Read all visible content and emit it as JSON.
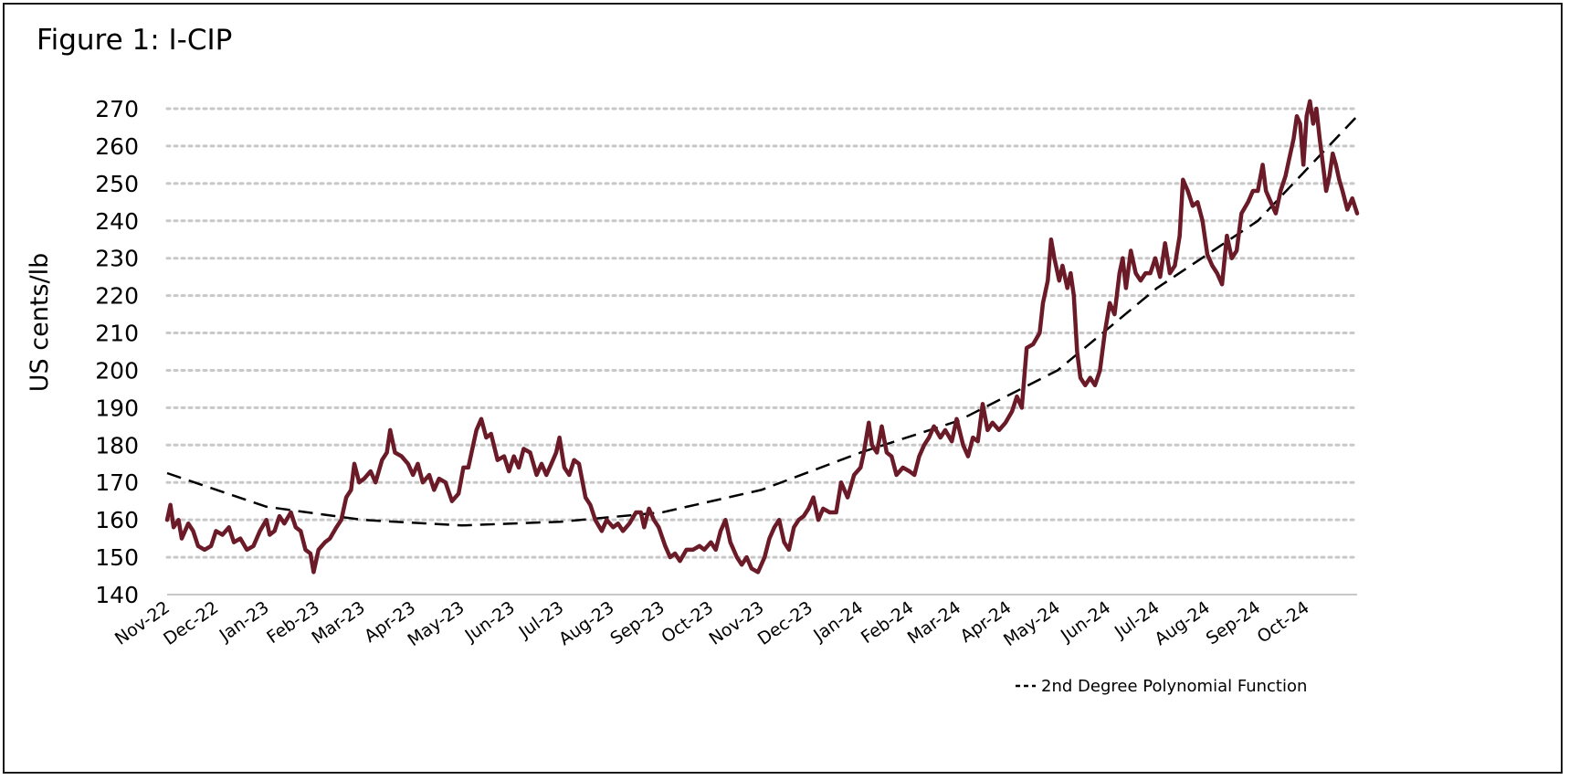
{
  "chart_data": {
    "type": "line",
    "title": "Figure 1: I-CIP",
    "xlabel": "",
    "ylabel": "US cents/lb",
    "ylim": [
      140,
      270
    ],
    "yticks": [
      140,
      150,
      160,
      170,
      180,
      190,
      200,
      210,
      220,
      230,
      240,
      250,
      260,
      270
    ],
    "grid": "horizontal dotted",
    "legend_position": "bottom-right",
    "colors": {
      "series": "#6b1a28",
      "trend": "#000000",
      "grid": "#c8c8c8"
    },
    "x_tick_labels": [
      "Nov-22",
      "Dec-22",
      "Jan-23",
      "Feb-23",
      "Mar-23",
      "Apr-23",
      "May-23",
      "Jun-23",
      "Jul-23",
      "Aug-23",
      "Sep-23",
      "Oct-23",
      "Nov-23",
      "Dec-23",
      "Jan-24",
      "Feb-24",
      "Mar-24",
      "Apr-24",
      "May-24",
      "Jun-24",
      "Jul-24",
      "Aug-24",
      "Sep-24",
      "Oct-24"
    ],
    "series": [
      {
        "style": "solid",
        "points": [
          [
            "2022-11-01",
            160
          ],
          [
            "2022-11-03",
            164
          ],
          [
            "2022-11-05",
            158
          ],
          [
            "2022-11-08",
            160
          ],
          [
            "2022-11-10",
            155
          ],
          [
            "2022-11-14",
            159
          ],
          [
            "2022-11-17",
            157
          ],
          [
            "2022-11-20",
            153
          ],
          [
            "2022-11-24",
            152
          ],
          [
            "2022-11-28",
            153
          ],
          [
            "2022-12-01",
            157
          ],
          [
            "2022-12-05",
            156
          ],
          [
            "2022-12-09",
            158
          ],
          [
            "2022-12-12",
            154
          ],
          [
            "2022-12-16",
            155
          ],
          [
            "2022-12-20",
            152
          ],
          [
            "2022-12-24",
            153
          ],
          [
            "2022-12-28",
            157
          ],
          [
            "2023-01-01",
            160
          ],
          [
            "2023-01-03",
            156
          ],
          [
            "2023-01-06",
            157
          ],
          [
            "2023-01-09",
            161
          ],
          [
            "2023-01-12",
            159
          ],
          [
            "2023-01-16",
            162
          ],
          [
            "2023-01-19",
            158
          ],
          [
            "2023-01-22",
            157
          ],
          [
            "2023-01-25",
            152
          ],
          [
            "2023-01-28",
            151
          ],
          [
            "2023-01-30",
            146
          ],
          [
            "2023-02-02",
            152
          ],
          [
            "2023-02-06",
            154
          ],
          [
            "2023-02-09",
            155
          ],
          [
            "2023-02-13",
            158
          ],
          [
            "2023-02-16",
            160
          ],
          [
            "2023-02-19",
            166
          ],
          [
            "2023-02-22",
            168
          ],
          [
            "2023-02-24",
            175
          ],
          [
            "2023-02-27",
            170
          ],
          [
            "2023-03-02",
            171
          ],
          [
            "2023-03-06",
            173
          ],
          [
            "2023-03-09",
            170
          ],
          [
            "2023-03-13",
            176
          ],
          [
            "2023-03-16",
            178
          ],
          [
            "2023-03-18",
            184
          ],
          [
            "2023-03-21",
            178
          ],
          [
            "2023-03-25",
            177
          ],
          [
            "2023-03-29",
            175
          ],
          [
            "2023-04-01",
            172
          ],
          [
            "2023-04-04",
            175
          ],
          [
            "2023-04-07",
            170
          ],
          [
            "2023-04-11",
            172
          ],
          [
            "2023-04-14",
            168
          ],
          [
            "2023-04-17",
            171
          ],
          [
            "2023-04-21",
            170
          ],
          [
            "2023-04-25",
            165
          ],
          [
            "2023-04-29",
            167
          ],
          [
            "2023-05-02",
            174
          ],
          [
            "2023-05-05",
            174
          ],
          [
            "2023-05-08",
            180
          ],
          [
            "2023-05-10",
            184
          ],
          [
            "2023-05-13",
            187
          ],
          [
            "2023-05-16",
            182
          ],
          [
            "2023-05-19",
            183
          ],
          [
            "2023-05-23",
            176
          ],
          [
            "2023-05-27",
            177
          ],
          [
            "2023-05-30",
            173
          ],
          [
            "2023-06-02",
            177
          ],
          [
            "2023-06-05",
            174
          ],
          [
            "2023-06-08",
            179
          ],
          [
            "2023-06-12",
            178
          ],
          [
            "2023-06-16",
            172
          ],
          [
            "2023-06-19",
            175
          ],
          [
            "2023-06-22",
            172
          ],
          [
            "2023-06-25",
            175
          ],
          [
            "2023-06-28",
            178
          ],
          [
            "2023-06-30",
            182
          ],
          [
            "2023-07-03",
            174
          ],
          [
            "2023-07-06",
            172
          ],
          [
            "2023-07-09",
            176
          ],
          [
            "2023-07-12",
            175
          ],
          [
            "2023-07-16",
            166
          ],
          [
            "2023-07-19",
            164
          ],
          [
            "2023-07-22",
            160
          ],
          [
            "2023-07-26",
            157
          ],
          [
            "2023-07-29",
            160
          ],
          [
            "2023-08-02",
            158
          ],
          [
            "2023-08-05",
            159
          ],
          [
            "2023-08-08",
            157
          ],
          [
            "2023-08-12",
            159
          ],
          [
            "2023-08-16",
            162
          ],
          [
            "2023-08-19",
            162
          ],
          [
            "2023-08-21",
            158
          ],
          [
            "2023-08-24",
            163
          ],
          [
            "2023-08-27",
            160
          ],
          [
            "2023-08-30",
            158
          ],
          [
            "2023-09-03",
            153
          ],
          [
            "2023-09-06",
            150
          ],
          [
            "2023-09-09",
            151
          ],
          [
            "2023-09-12",
            149
          ],
          [
            "2023-09-16",
            152
          ],
          [
            "2023-09-20",
            152
          ],
          [
            "2023-09-24",
            153
          ],
          [
            "2023-09-27",
            152
          ],
          [
            "2023-10-01",
            154
          ],
          [
            "2023-10-04",
            152
          ],
          [
            "2023-10-07",
            157
          ],
          [
            "2023-10-10",
            160
          ],
          [
            "2023-10-13",
            154
          ],
          [
            "2023-10-17",
            150
          ],
          [
            "2023-10-20",
            148
          ],
          [
            "2023-10-23",
            150
          ],
          [
            "2023-10-26",
            147
          ],
          [
            "2023-10-30",
            146
          ],
          [
            "2023-11-03",
            150
          ],
          [
            "2023-11-06",
            155
          ],
          [
            "2023-11-09",
            158
          ],
          [
            "2023-11-12",
            160
          ],
          [
            "2023-11-15",
            154
          ],
          [
            "2023-11-18",
            152
          ],
          [
            "2023-11-21",
            158
          ],
          [
            "2023-11-24",
            160
          ],
          [
            "2023-11-27",
            161
          ],
          [
            "2023-11-30",
            163
          ],
          [
            "2023-12-03",
            166
          ],
          [
            "2023-12-06",
            160
          ],
          [
            "2023-12-09",
            163
          ],
          [
            "2023-12-13",
            162
          ],
          [
            "2023-12-17",
            162
          ],
          [
            "2023-12-20",
            170
          ],
          [
            "2023-12-24",
            166
          ],
          [
            "2023-12-28",
            172
          ],
          [
            "2024-01-01",
            174
          ],
          [
            "2024-01-03",
            178
          ],
          [
            "2024-01-06",
            186
          ],
          [
            "2024-01-08",
            180
          ],
          [
            "2024-01-11",
            178
          ],
          [
            "2024-01-14",
            185
          ],
          [
            "2024-01-17",
            178
          ],
          [
            "2024-01-20",
            177
          ],
          [
            "2024-01-23",
            172
          ],
          [
            "2024-01-27",
            174
          ],
          [
            "2024-01-31",
            173
          ],
          [
            "2024-02-03",
            172
          ],
          [
            "2024-02-06",
            177
          ],
          [
            "2024-02-09",
            180
          ],
          [
            "2024-02-12",
            182
          ],
          [
            "2024-02-15",
            185
          ],
          [
            "2024-02-19",
            182
          ],
          [
            "2024-02-22",
            184
          ],
          [
            "2024-02-26",
            181
          ],
          [
            "2024-02-29",
            187
          ],
          [
            "2024-03-04",
            180
          ],
          [
            "2024-03-07",
            177
          ],
          [
            "2024-03-10",
            182
          ],
          [
            "2024-03-13",
            181
          ],
          [
            "2024-03-16",
            191
          ],
          [
            "2024-03-19",
            184
          ],
          [
            "2024-03-22",
            186
          ],
          [
            "2024-03-26",
            184
          ],
          [
            "2024-03-30",
            186
          ],
          [
            "2024-04-03",
            189
          ],
          [
            "2024-04-06",
            193
          ],
          [
            "2024-04-09",
            190
          ],
          [
            "2024-04-12",
            206
          ],
          [
            "2024-04-16",
            207
          ],
          [
            "2024-04-20",
            210
          ],
          [
            "2024-04-22",
            218
          ],
          [
            "2024-04-25",
            224
          ],
          [
            "2024-04-27",
            235
          ],
          [
            "2024-04-29",
            230
          ],
          [
            "2024-05-02",
            224
          ],
          [
            "2024-05-04",
            228
          ],
          [
            "2024-05-07",
            222
          ],
          [
            "2024-05-09",
            226
          ],
          [
            "2024-05-11",
            220
          ],
          [
            "2024-05-13",
            205
          ],
          [
            "2024-05-15",
            198
          ],
          [
            "2024-05-18",
            196
          ],
          [
            "2024-05-21",
            198
          ],
          [
            "2024-05-24",
            196
          ],
          [
            "2024-05-27",
            200
          ],
          [
            "2024-05-30",
            210
          ],
          [
            "2024-06-02",
            218
          ],
          [
            "2024-06-05",
            215
          ],
          [
            "2024-06-08",
            226
          ],
          [
            "2024-06-10",
            230
          ],
          [
            "2024-06-12",
            222
          ],
          [
            "2024-06-15",
            232
          ],
          [
            "2024-06-18",
            226
          ],
          [
            "2024-06-21",
            224
          ],
          [
            "2024-06-24",
            226
          ],
          [
            "2024-06-27",
            226
          ],
          [
            "2024-06-30",
            230
          ],
          [
            "2024-07-03",
            225
          ],
          [
            "2024-07-06",
            234
          ],
          [
            "2024-07-09",
            226
          ],
          [
            "2024-07-12",
            228
          ],
          [
            "2024-07-15",
            236
          ],
          [
            "2024-07-17",
            251
          ],
          [
            "2024-07-20",
            248
          ],
          [
            "2024-07-23",
            244
          ],
          [
            "2024-07-26",
            245
          ],
          [
            "2024-07-29",
            240
          ],
          [
            "2024-08-01",
            231
          ],
          [
            "2024-08-04",
            228
          ],
          [
            "2024-08-07",
            226
          ],
          [
            "2024-08-10",
            223
          ],
          [
            "2024-08-13",
            236
          ],
          [
            "2024-08-16",
            230
          ],
          [
            "2024-08-19",
            232
          ],
          [
            "2024-08-22",
            242
          ],
          [
            "2024-08-26",
            245
          ],
          [
            "2024-08-29",
            248
          ],
          [
            "2024-09-01",
            248
          ],
          [
            "2024-09-04",
            255
          ],
          [
            "2024-09-06",
            248
          ],
          [
            "2024-09-09",
            245
          ],
          [
            "2024-09-12",
            242
          ],
          [
            "2024-09-15",
            248
          ],
          [
            "2024-09-18",
            252
          ],
          [
            "2024-09-20",
            256
          ],
          [
            "2024-09-23",
            262
          ],
          [
            "2024-09-25",
            268
          ],
          [
            "2024-09-27",
            266
          ],
          [
            "2024-09-29",
            255
          ],
          [
            "2024-10-01",
            268
          ],
          [
            "2024-10-03",
            272
          ],
          [
            "2024-10-05",
            266
          ],
          [
            "2024-10-07",
            270
          ],
          [
            "2024-10-09",
            262
          ],
          [
            "2024-10-11",
            255
          ],
          [
            "2024-10-13",
            248
          ],
          [
            "2024-10-15",
            252
          ],
          [
            "2024-10-17",
            258
          ],
          [
            "2024-10-19",
            255
          ],
          [
            "2024-10-21",
            251
          ],
          [
            "2024-10-23",
            248
          ],
          [
            "2024-10-26",
            243
          ],
          [
            "2024-10-29",
            246
          ],
          [
            "2024-11-01",
            242
          ]
        ]
      },
      {
        "name": "2nd Degree Polynomial Function",
        "style": "dashed",
        "type": "polynomial_trend",
        "points": [
          [
            "2022-11-01",
            172.5
          ],
          [
            "2023-01-01",
            163.5
          ],
          [
            "2023-03-01",
            160
          ],
          [
            "2023-05-01",
            158.5
          ],
          [
            "2023-07-01",
            159.5
          ],
          [
            "2023-09-01",
            162
          ],
          [
            "2023-11-01",
            168
          ],
          [
            "2024-01-01",
            178
          ],
          [
            "2024-03-01",
            186.5
          ],
          [
            "2024-05-01",
            200
          ],
          [
            "2024-07-01",
            222
          ],
          [
            "2024-09-01",
            240
          ],
          [
            "2024-11-01",
            268
          ]
        ]
      }
    ]
  }
}
